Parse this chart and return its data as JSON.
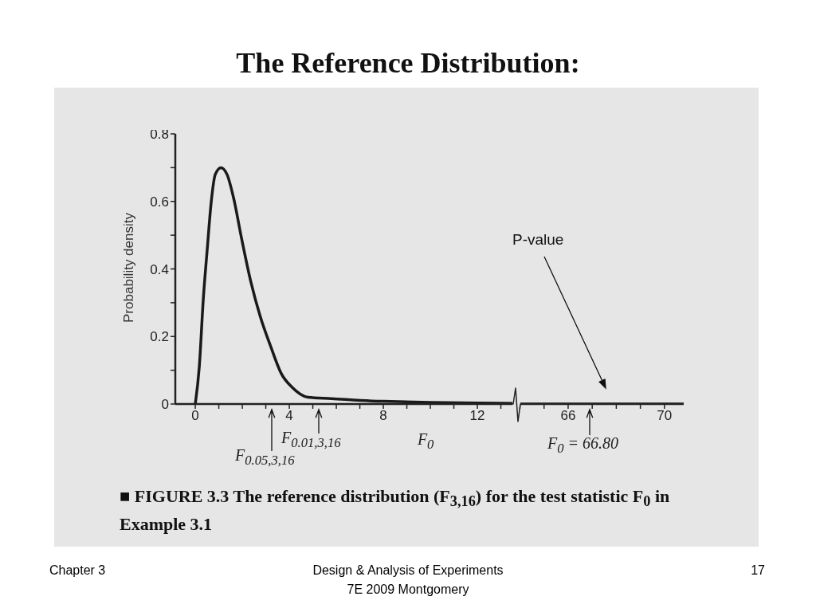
{
  "chart_data": [
    {
      "type": "line",
      "title": "The Reference Distribution:",
      "ylabel": "Probability density",
      "xlabel": "F$_{0}$",
      "color": "#1a1a1a",
      "x": [
        0,
        0.17,
        0.34,
        0.51,
        0.68,
        0.85,
        1.09,
        1.35,
        1.63,
        1.97,
        2.37,
        2.76,
        3.21,
        3.66,
        4.11,
        4.79,
        5.8,
        7.5,
        8,
        10,
        12,
        13.66
      ],
      "values": [
        0,
        0.11,
        0.31,
        0.46,
        0.6,
        0.68,
        0.7,
        0.68,
        0.61,
        0.49,
        0.36,
        0.26,
        0.17,
        0.09,
        0.05,
        0.02,
        0.016,
        0.009,
        0.008,
        0.005,
        0.003,
        0.002
      ],
      "xlim": [
        -0.85,
        13.66
      ],
      "xticks": [
        0,
        {
          "value": 1,
          "label": null
        },
        {
          "value": 2,
          "label": null
        },
        {
          "value": 3,
          "label": null
        },
        4,
        {
          "value": 5,
          "label": null
        },
        {
          "value": 6,
          "label": null
        },
        {
          "value": 7,
          "label": null
        },
        8,
        {
          "value": 9,
          "label": null
        },
        {
          "value": 10,
          "label": null
        },
        {
          "value": 11,
          "label": null
        },
        12,
        {
          "value": 13,
          "label": null
        }
      ],
      "ylim": [
        0,
        0.8
      ],
      "yticks": [
        0,
        {
          "value": 0.1,
          "label": null
        },
        0.2,
        {
          "value": 0.3,
          "label": null
        },
        0.4,
        {
          "value": 0.5,
          "label": null
        },
        0.6,
        {
          "value": 0.7,
          "label": null
        },
        0.8
      ],
      "annotations": [
        "F$_{0.05,3,16}$",
        "F$_{0.01,3,16}$",
        "■ FIGURE 3.3 The reference distribution (F$_{3,16}$) for the test statistic F$_{0}$ in Example 3.1",
        "Chapter 3",
        "Design & Analysis of Experiments",
        "7E 2009 Montgomery",
        "17"
      ]
    },
    {
      "type": "line",
      "color": "#1a1a1a",
      "x": [
        63.85,
        66,
        68,
        70.8
      ],
      "values": [
        0,
        0,
        0,
        0
      ],
      "xlim": [
        63.85,
        70.8
      ],
      "xticks": [
        {
          "value": 64,
          "label": null
        },
        {
          "value": 65,
          "label": null
        },
        66,
        {
          "value": 67,
          "label": null
        },
        {
          "value": 68,
          "label": null
        },
        {
          "value": 69,
          "label": null
        },
        70
      ],
      "ylim": [
        0,
        0.8
      ],
      "tick_labels": "x",
      "annotations": [
        "P-value",
        "F$_{0}$ = 66.80"
      ]
    }
  ]
}
